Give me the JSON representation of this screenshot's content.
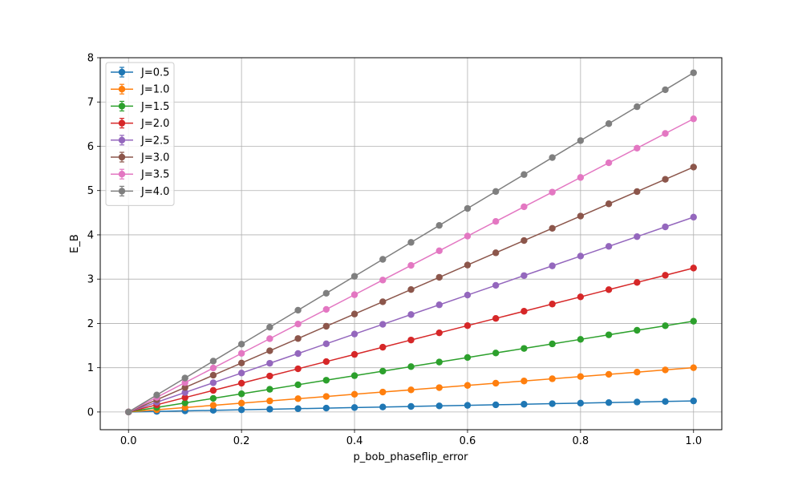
{
  "chart_data": {
    "type": "line",
    "title": "",
    "xlabel": "p_bob_phaseflip_error",
    "ylabel": "E_B",
    "xlim": [
      -0.05,
      1.05
    ],
    "ylim": [
      -0.4,
      8.0
    ],
    "x_ticks": [
      "0.0",
      "0.2",
      "0.4",
      "0.6",
      "0.8",
      "1.0"
    ],
    "x_tick_values": [
      0.0,
      0.2,
      0.4,
      0.6,
      0.8,
      1.0
    ],
    "y_ticks": [
      "0",
      "1",
      "2",
      "3",
      "4",
      "5",
      "6",
      "7",
      "8"
    ],
    "y_tick_values": [
      0,
      1,
      2,
      3,
      4,
      5,
      6,
      7,
      8
    ],
    "grid": true,
    "legend_position": "top-left",
    "markers": "circle with error bars",
    "x": [
      0.0,
      0.05,
      0.1,
      0.15,
      0.2,
      0.25,
      0.3,
      0.35,
      0.4,
      0.45,
      0.5,
      0.55,
      0.6,
      0.65,
      0.7,
      0.75,
      0.8,
      0.85,
      0.9,
      0.95,
      1.0
    ],
    "series": [
      {
        "name": "J=0.5",
        "color": "#1f77b4",
        "values": [
          0.0,
          0.0125,
          0.025,
          0.0375,
          0.05,
          0.0625,
          0.075,
          0.0875,
          0.1,
          0.1125,
          0.125,
          0.1375,
          0.15,
          0.1625,
          0.175,
          0.1875,
          0.2,
          0.2125,
          0.225,
          0.2375,
          0.25
        ]
      },
      {
        "name": "J=1.0",
        "color": "#ff7f0e",
        "values": [
          0.0,
          0.05,
          0.1,
          0.15,
          0.2,
          0.25,
          0.3,
          0.35,
          0.4,
          0.45,
          0.5,
          0.55,
          0.6,
          0.65,
          0.7,
          0.75,
          0.8,
          0.85,
          0.9,
          0.95,
          1.0
        ]
      },
      {
        "name": "J=1.5",
        "color": "#2ca02c",
        "values": [
          0.0,
          0.1025,
          0.205,
          0.3075,
          0.41,
          0.5125,
          0.615,
          0.7175,
          0.82,
          0.9225,
          1.025,
          1.1275,
          1.23,
          1.3325,
          1.435,
          1.5375,
          1.64,
          1.7425,
          1.845,
          1.9475,
          2.05
        ]
      },
      {
        "name": "J=2.0",
        "color": "#d62728",
        "values": [
          0.0,
          0.1625,
          0.325,
          0.4875,
          0.65,
          0.8125,
          0.975,
          1.1375,
          1.3,
          1.4625,
          1.625,
          1.7875,
          1.95,
          2.1125,
          2.275,
          2.4375,
          2.6,
          2.7625,
          2.925,
          3.0875,
          3.25
        ]
      },
      {
        "name": "J=2.5",
        "color": "#9467bd",
        "values": [
          0.0,
          0.22,
          0.44,
          0.66,
          0.88,
          1.1,
          1.32,
          1.54,
          1.76,
          1.98,
          2.2,
          2.42,
          2.64,
          2.86,
          3.08,
          3.3,
          3.52,
          3.74,
          3.96,
          4.18,
          4.4
        ]
      },
      {
        "name": "J=3.0",
        "color": "#8c564b",
        "values": [
          0.0,
          0.2765,
          0.553,
          0.8295,
          1.106,
          1.3825,
          1.659,
          1.9355,
          2.212,
          2.4885,
          2.765,
          3.0415,
          3.318,
          3.5945,
          3.871,
          4.1475,
          4.424,
          4.7005,
          4.977,
          5.2535,
          5.53
        ]
      },
      {
        "name": "J=3.5",
        "color": "#e377c2",
        "values": [
          0.0,
          0.331,
          0.662,
          0.993,
          1.324,
          1.655,
          1.986,
          2.317,
          2.648,
          2.979,
          3.31,
          3.641,
          3.972,
          4.303,
          4.634,
          4.965,
          5.296,
          5.627,
          5.958,
          6.289,
          6.62
        ]
      },
      {
        "name": "J=4.0",
        "color": "#7f7f7f",
        "values": [
          0.0,
          0.383,
          0.766,
          1.149,
          1.532,
          1.915,
          2.298,
          2.681,
          3.064,
          3.447,
          3.83,
          4.213,
          4.596,
          4.979,
          5.362,
          5.745,
          6.128,
          6.511,
          6.894,
          7.277,
          7.66
        ]
      }
    ]
  }
}
